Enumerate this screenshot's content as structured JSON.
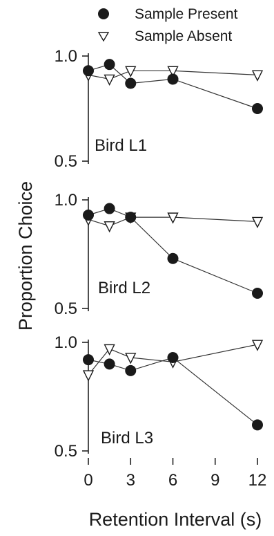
{
  "colors": {
    "ink": "#1a1a1a",
    "filled_marker": "#1a1a1a",
    "open_marker_fill": "#ffffff",
    "line": "#333333"
  },
  "legend": {
    "placement": "top-right",
    "items": [
      {
        "label": "Sample Present",
        "marker": "filled-circle"
      },
      {
        "label": "Sample Absent",
        "marker": "open-down-triangle"
      }
    ]
  },
  "axes": {
    "xlabel": "Retention Interval (s)",
    "ylabel": "Proportion Choice"
  },
  "chart_data": [
    {
      "type": "line",
      "panel_label": "Bird L1",
      "x": [
        0,
        1.5,
        3,
        6,
        12
      ],
      "ylim": [
        0.5,
        1.0
      ],
      "yticks": [
        0.5,
        1.0
      ],
      "ytick_labels": [
        "0.5",
        "1.0"
      ],
      "xlim": [
        0,
        12
      ],
      "show_xticks": false,
      "grid": false,
      "series": [
        {
          "name": "Sample Present",
          "marker": "filled-circle",
          "values": [
            0.93,
            0.96,
            0.87,
            0.89,
            0.75
          ]
        },
        {
          "name": "Sample Absent",
          "marker": "open-down-triangle",
          "values": [
            0.91,
            0.89,
            0.93,
            0.93,
            0.91
          ]
        }
      ]
    },
    {
      "type": "line",
      "panel_label": "Bird L2",
      "x": [
        0,
        1.5,
        3,
        6,
        12
      ],
      "ylim": [
        0.5,
        1.0
      ],
      "yticks": [
        0.5,
        1.0
      ],
      "ytick_labels": [
        "0.5",
        "1.0"
      ],
      "xlim": [
        0,
        12
      ],
      "show_xticks": false,
      "grid": false,
      "series": [
        {
          "name": "Sample Present",
          "marker": "filled-circle",
          "values": [
            0.93,
            0.96,
            0.92,
            0.73,
            0.57
          ]
        },
        {
          "name": "Sample Absent",
          "marker": "open-down-triangle",
          "values": [
            0.91,
            0.88,
            0.92,
            0.92,
            0.9
          ]
        }
      ]
    },
    {
      "type": "line",
      "panel_label": "Bird L3",
      "x": [
        0,
        1.5,
        3,
        6,
        12
      ],
      "ylim": [
        0.5,
        1.0
      ],
      "yticks": [
        0.5,
        1.0
      ],
      "ytick_labels": [
        "0.5",
        "1.0"
      ],
      "xlim": [
        0,
        12
      ],
      "xticks": [
        0,
        3,
        6,
        9,
        12
      ],
      "xtick_labels": [
        "0",
        "3",
        "6",
        "9",
        "12"
      ],
      "show_xticks": true,
      "grid": false,
      "series": [
        {
          "name": "Sample Present",
          "marker": "filled-circle",
          "values": [
            0.92,
            0.9,
            0.87,
            0.93,
            0.62
          ]
        },
        {
          "name": "Sample Absent",
          "marker": "open-down-triangle",
          "values": [
            0.85,
            0.97,
            0.93,
            0.91,
            0.99
          ]
        }
      ]
    }
  ]
}
